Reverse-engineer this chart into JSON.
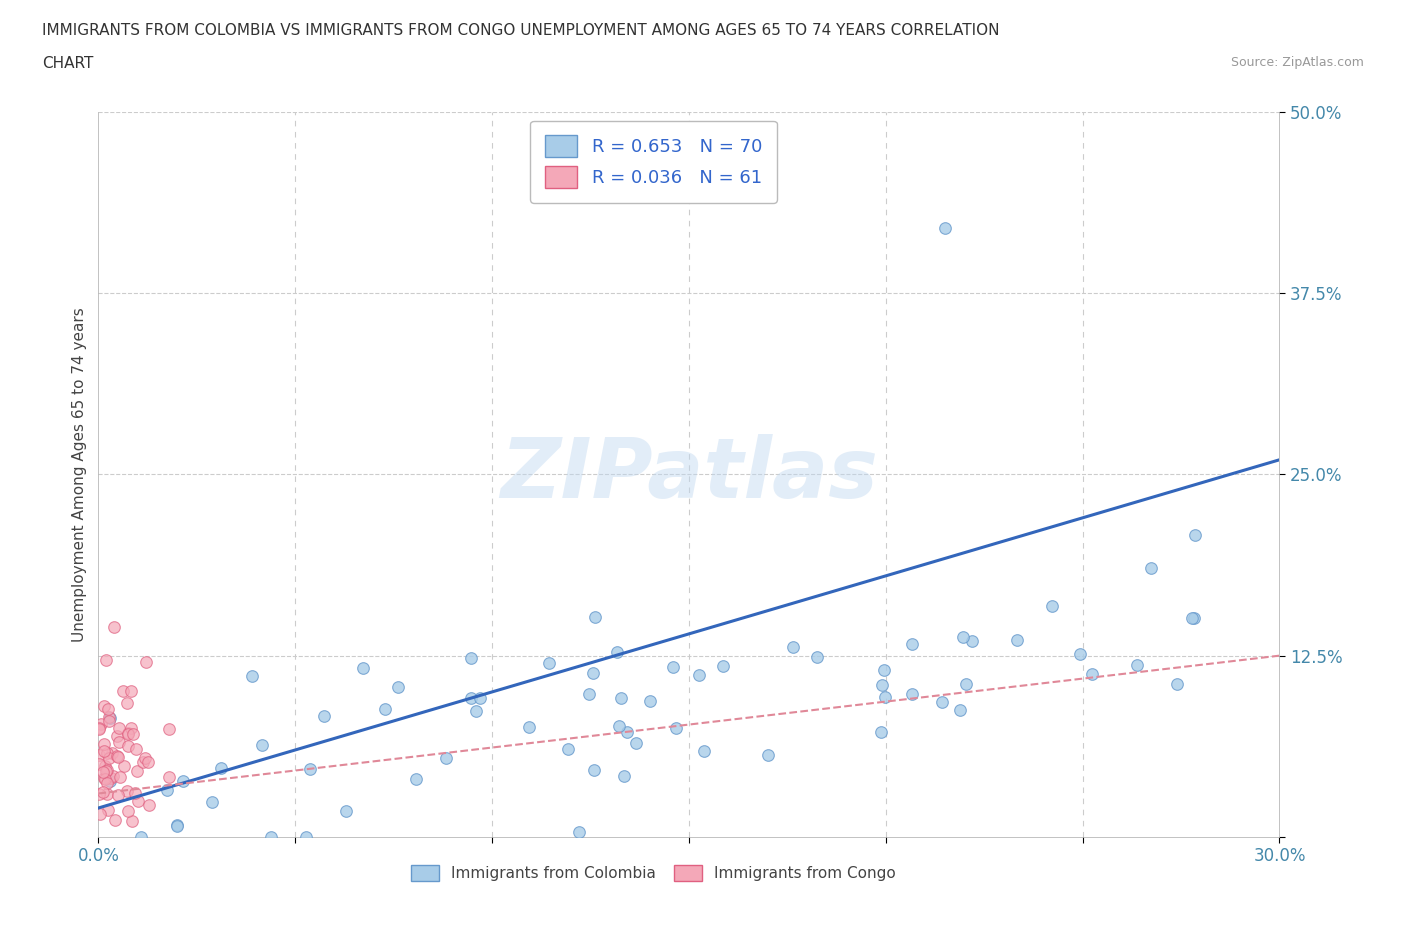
{
  "title_line1": "IMMIGRANTS FROM COLOMBIA VS IMMIGRANTS FROM CONGO UNEMPLOYMENT AMONG AGES 65 TO 74 YEARS CORRELATION",
  "title_line2": "CHART",
  "source": "Source: ZipAtlas.com",
  "xlabel_col": "Immigrants from Colombia",
  "xlabel_con": "Immigrants from Congo",
  "ylabel": "Unemployment Among Ages 65 to 74 years",
  "xlim": [
    0.0,
    0.3
  ],
  "ylim": [
    0.0,
    0.5
  ],
  "xticks": [
    0.0,
    0.05,
    0.1,
    0.15,
    0.2,
    0.25,
    0.3
  ],
  "yticks": [
    0.0,
    0.125,
    0.25,
    0.375,
    0.5
  ],
  "colombia_color": "#A8CCE8",
  "congo_color": "#F4A8B8",
  "colombia_edge": "#6699CC",
  "congo_edge": "#E06080",
  "colombia_R": 0.653,
  "colombia_N": 70,
  "congo_R": 0.036,
  "congo_N": 61,
  "trend_colombia_color": "#3366BB",
  "trend_congo_color": "#E08898",
  "watermark": "ZIPatlas",
  "background_color": "#FFFFFF",
  "grid_color": "#CCCCCC",
  "legend_R_color": "#3366CC",
  "title_color": "#333333",
  "source_color": "#999999",
  "tick_color": "#4488AA"
}
